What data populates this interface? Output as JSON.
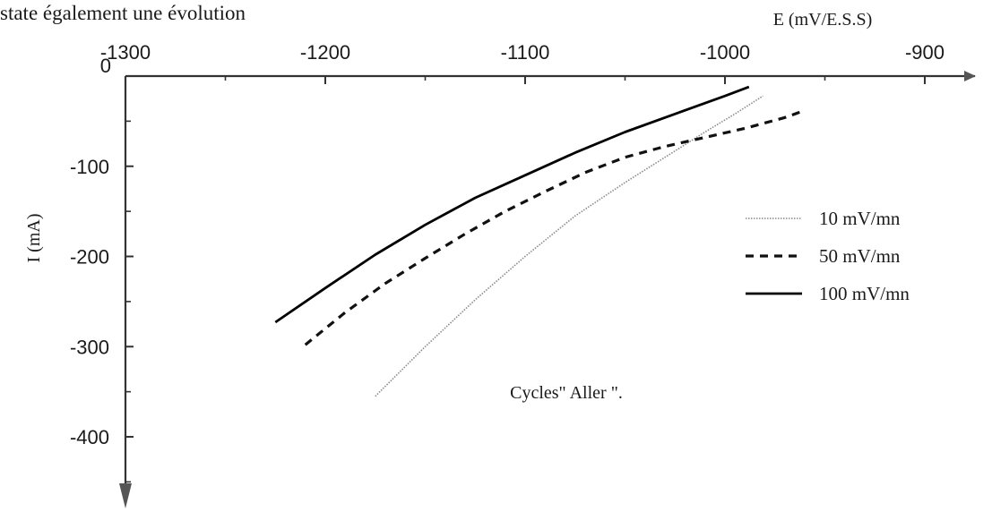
{
  "page": {
    "header_fragment": "state également une évolution"
  },
  "chart_data": {
    "type": "line",
    "title": "",
    "xlabel": "E (mV/E.S.S)",
    "ylabel": "I (mA)",
    "xlim": [
      -1300,
      -900
    ],
    "ylim": [
      -400,
      0
    ],
    "x_ticks": [
      "-1300",
      "-1200",
      "-1100",
      "-1000",
      "-900"
    ],
    "y_ticks": [
      "0",
      "-100",
      "-200",
      "-300",
      "-400"
    ],
    "grid": false,
    "legend_position": "right",
    "annotation": "Cycles\" Aller \".",
    "series": [
      {
        "name": "10 mV/mn",
        "style": "dotted",
        "color": "#8a8a8a",
        "points": [
          [
            -1175,
            -355
          ],
          [
            -1150,
            -300
          ],
          [
            -1125,
            -248
          ],
          [
            -1100,
            -200
          ],
          [
            -1075,
            -155
          ],
          [
            -1050,
            -118
          ],
          [
            -1030,
            -90
          ],
          [
            -1010,
            -62
          ],
          [
            -995,
            -42
          ],
          [
            -981,
            -22
          ]
        ]
      },
      {
        "name": "50 mV/mn",
        "style": "dashed",
        "color": "#111111",
        "points": [
          [
            -1210,
            -298
          ],
          [
            -1190,
            -262
          ],
          [
            -1170,
            -230
          ],
          [
            -1150,
            -202
          ],
          [
            -1130,
            -175
          ],
          [
            -1110,
            -150
          ],
          [
            -1090,
            -128
          ],
          [
            -1070,
            -107
          ],
          [
            -1050,
            -90
          ],
          [
            -1030,
            -78
          ],
          [
            -1010,
            -68
          ],
          [
            -990,
            -58
          ],
          [
            -970,
            -46
          ],
          [
            -960,
            -38
          ]
        ]
      },
      {
        "name": "100 mV/mn",
        "style": "solid",
        "color": "#000000",
        "points": [
          [
            -1225,
            -273
          ],
          [
            -1200,
            -235
          ],
          [
            -1175,
            -198
          ],
          [
            -1150,
            -165
          ],
          [
            -1125,
            -135
          ],
          [
            -1100,
            -110
          ],
          [
            -1075,
            -85
          ],
          [
            -1050,
            -62
          ],
          [
            -1025,
            -42
          ],
          [
            -1000,
            -22
          ],
          [
            -988,
            -12
          ]
        ]
      }
    ]
  }
}
